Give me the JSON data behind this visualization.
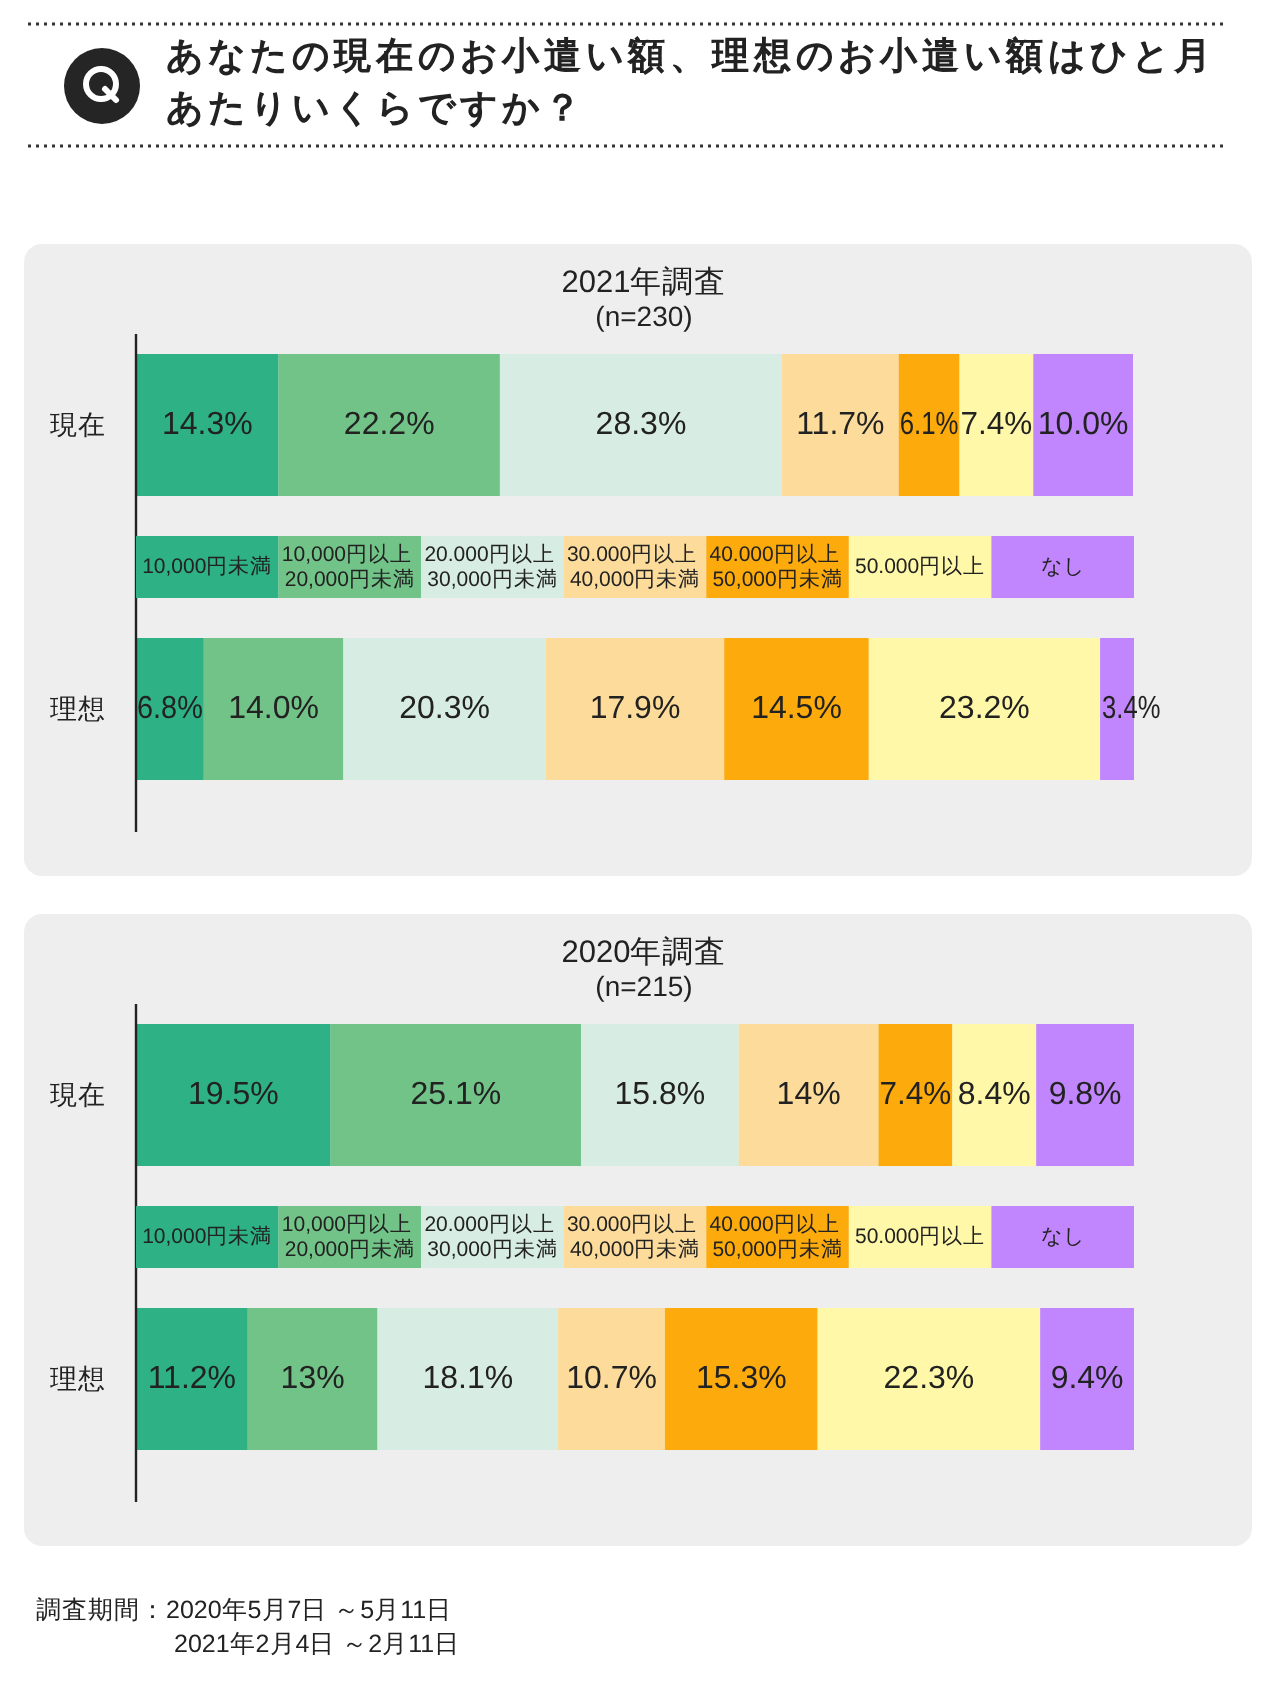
{
  "chart_data": [
    {
      "type": "other",
      "title": "あなたの現在のお小遣い額、理想のお小遣い額はひと月あたりいくらですか？",
      "annotations": [
        "調査期間：2020年5月7日 ～5月11日",
        "2021年2月4日 ～2月11日"
      ]
    },
    {
      "type": "bar",
      "orientation": "horizontal",
      "stacked": true,
      "title": "2021年調査",
      "subtitle": "(n=230)",
      "categories": [
        "現在",
        "理想"
      ],
      "xlim": [
        0,
        100.1
      ],
      "tick_labels": "y",
      "legend": "center",
      "series": [
        {
          "name": "10,000円未満",
          "color": "#2db185",
          "values": [
            14.3,
            6.8
          ],
          "value_labels": [
            "14.3%",
            "6.8%"
          ]
        },
        {
          "name": "10,000円以上 20,000円未満",
          "color": "#72c388",
          "values": [
            22.2,
            14.0
          ],
          "value_labels": [
            "22.2%",
            "14.0%"
          ]
        },
        {
          "name": "20.000円以上 30,000円未満",
          "color": "#d7ece3",
          "values": [
            28.3,
            20.3
          ],
          "value_labels": [
            "28.3%",
            "20.3%"
          ]
        },
        {
          "name": "30.000円以上 40,000円未満",
          "color": "#fddc9b",
          "values": [
            11.7,
            17.9
          ],
          "value_labels": [
            "11.7%",
            "17.9%"
          ]
        },
        {
          "name": "40.000円以上 50,000円未満",
          "color": "#fdab0c",
          "values": [
            6.1,
            14.5
          ],
          "value_labels": [
            "6.1%",
            "14.5%"
          ]
        },
        {
          "name": "50.000円以上",
          "color": "#fff8a8",
          "values": [
            7.4,
            23.2
          ],
          "value_labels": [
            "7.4%",
            "23.2%"
          ]
        },
        {
          "name": "なし",
          "color": "#c185fd",
          "values": [
            10.0,
            3.4
          ],
          "value_labels": [
            "10.0%",
            "3.4%"
          ]
        }
      ]
    },
    {
      "type": "bar",
      "orientation": "horizontal",
      "stacked": true,
      "title": "2020年調査",
      "subtitle": "(n=215)",
      "categories": [
        "現在",
        "理想"
      ],
      "xlim": [
        0,
        100
      ],
      "tick_labels": "y",
      "legend": "center",
      "series": [
        {
          "name": "10,000円未満",
          "color": "#2db185",
          "values": [
            19.5,
            11.2
          ],
          "value_labels": [
            "19.5%",
            "11.2%"
          ]
        },
        {
          "name": "10,000円以上 20,000円未満",
          "color": "#72c388",
          "values": [
            25.1,
            13
          ],
          "value_labels": [
            "25.1%",
            "13%"
          ]
        },
        {
          "name": "20.000円以上 30,000円未満",
          "color": "#d7ece3",
          "values": [
            15.8,
            18.1
          ],
          "value_labels": [
            "15.8%",
            "18.1%"
          ]
        },
        {
          "name": "30.000円以上 40,000円未満",
          "color": "#fddc9b",
          "values": [
            14,
            10.7
          ],
          "value_labels": [
            "14%",
            "10.7%"
          ]
        },
        {
          "name": "40.000円以上 50,000円未満",
          "color": "#fdab0c",
          "values": [
            7.4,
            15.3
          ],
          "value_labels": [
            "7.4%",
            "15.3%"
          ]
        },
        {
          "name": "50.000円以上",
          "color": "#fff8a8",
          "values": [
            8.4,
            22.3
          ],
          "value_labels": [
            "8.4%",
            "22.3%"
          ]
        },
        {
          "name": "なし",
          "color": "#c185fd",
          "values": [
            9.8,
            9.4
          ],
          "value_labels": [
            "9.8%",
            "9.4%"
          ]
        }
      ]
    }
  ]
}
